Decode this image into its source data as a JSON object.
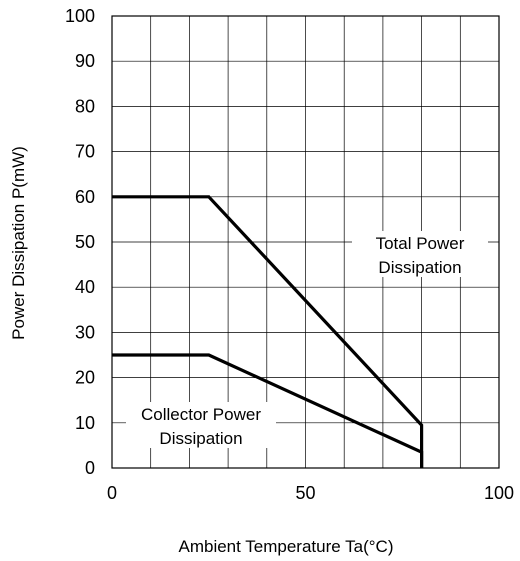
{
  "chart_data": {
    "type": "line",
    "title": "",
    "xlabel": "Ambient Temperature Ta(°C)",
    "ylabel": "Power Dissipation P(mW)",
    "xlim": [
      0,
      100
    ],
    "ylim": [
      0,
      100
    ],
    "x_ticks": [
      "0",
      "50",
      "100"
    ],
    "y_ticks": [
      "0",
      "10",
      "20",
      "30",
      "40",
      "50",
      "60",
      "70",
      "80",
      "90",
      "100"
    ],
    "grid": true,
    "series": [
      {
        "x": [
          0,
          25,
          80,
          80
        ],
        "y": [
          60,
          60,
          9.5,
          0
        ]
      },
      {
        "x": [
          0,
          25,
          80,
          80
        ],
        "y": [
          25,
          25,
          3.5,
          0
        ]
      }
    ],
    "annotations": [
      {
        "lines": [
          "Total Power",
          "Dissipation"
        ]
      },
      {
        "lines": [
          "Collector Power",
          "Dissipation"
        ]
      }
    ]
  }
}
